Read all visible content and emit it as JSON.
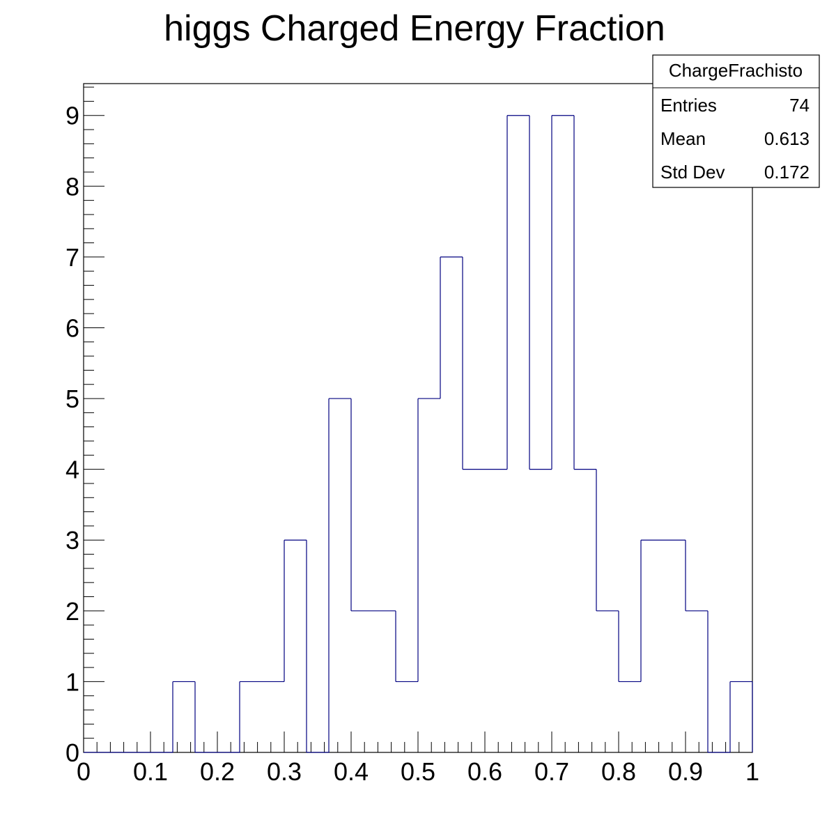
{
  "chart_data": {
    "type": "bar",
    "title": "higgs Charged Energy Fraction",
    "xlabel": "",
    "ylabel": "",
    "xlim": [
      0,
      1
    ],
    "ylim": [
      0,
      9.45
    ],
    "bin_width": 0.0333,
    "bin_low_edges": [
      0,
      0.0333,
      0.0667,
      0.1,
      0.1333,
      0.1667,
      0.2,
      0.2333,
      0.2667,
      0.3,
      0.3333,
      0.3667,
      0.4,
      0.4333,
      0.4667,
      0.5,
      0.5333,
      0.5667,
      0.6,
      0.6333,
      0.6667,
      0.7,
      0.7333,
      0.7667,
      0.8,
      0.8333,
      0.8667,
      0.9,
      0.9333,
      0.9667
    ],
    "values": [
      0,
      0,
      0,
      0,
      1,
      0,
      0,
      1,
      1,
      3,
      0,
      5,
      2,
      2,
      1,
      5,
      7,
      4,
      4,
      9,
      4,
      9,
      4,
      2,
      1,
      3,
      3,
      2,
      0,
      1
    ],
    "x_ticks": [
      "0",
      "0.1",
      "0.2",
      "0.3",
      "0.4",
      "0.5",
      "0.6",
      "0.7",
      "0.8",
      "0.9",
      "1"
    ],
    "y_ticks": [
      "0",
      "1",
      "2",
      "3",
      "4",
      "5",
      "6",
      "7",
      "8",
      "9"
    ],
    "line_color": "#000080",
    "grid": false,
    "legend": "none"
  },
  "stats_box": {
    "title": "ChargeFrachisto",
    "rows": [
      {
        "label": "Entries",
        "value": "74"
      },
      {
        "label": "Mean",
        "value": "0.613"
      },
      {
        "label": "Std Dev",
        "value": "0.172"
      }
    ]
  }
}
